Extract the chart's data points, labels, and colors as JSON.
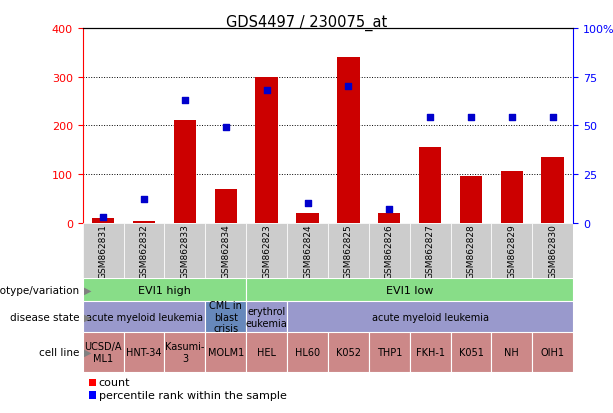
{
  "title": "GDS4497 / 230075_at",
  "gsm_labels": [
    "GSM862831",
    "GSM862832",
    "GSM862833",
    "GSM862834",
    "GSM862823",
    "GSM862824",
    "GSM862825",
    "GSM862826",
    "GSM862827",
    "GSM862828",
    "GSM862829",
    "GSM862830"
  ],
  "counts": [
    10,
    4,
    210,
    70,
    300,
    20,
    340,
    20,
    155,
    95,
    105,
    135
  ],
  "percentile_ranks": [
    3,
    12,
    63,
    49,
    68,
    10,
    70,
    7,
    54,
    54,
    54,
    54
  ],
  "ylim_left": [
    0,
    400
  ],
  "ylim_right": [
    0,
    100
  ],
  "yticks_left": [
    0,
    100,
    200,
    300,
    400
  ],
  "yticks_right": [
    0,
    25,
    50,
    75,
    100
  ],
  "bar_color": "#cc0000",
  "dot_color": "#0000cc",
  "bg_color": "#ffffff",
  "xtick_bg": "#cccccc",
  "genotype_label": "genotype/variation",
  "disease_label": "disease state",
  "cellline_label": "cell line",
  "genotype_groups": [
    {
      "label": "EVI1 high",
      "start": 0,
      "end": 4,
      "color": "#88dd88"
    },
    {
      "label": "EVI1 low",
      "start": 4,
      "end": 12,
      "color": "#88dd88"
    }
  ],
  "disease_groups": [
    {
      "label": "acute myeloid leukemia",
      "start": 0,
      "end": 3,
      "color": "#9999cc"
    },
    {
      "label": "CML in\nblast\ncrisis",
      "start": 3,
      "end": 4,
      "color": "#6688bb"
    },
    {
      "label": "erythrol\neukemia",
      "start": 4,
      "end": 5,
      "color": "#9999cc"
    },
    {
      "label": "acute myeloid leukemia",
      "start": 5,
      "end": 12,
      "color": "#9999cc"
    }
  ],
  "cell_lines": [
    {
      "label": "UCSD/A\nML1",
      "start": 0,
      "end": 1
    },
    {
      "label": "HNT-34",
      "start": 1,
      "end": 2
    },
    {
      "label": "Kasumi-\n3",
      "start": 2,
      "end": 3
    },
    {
      "label": "MOLM1",
      "start": 3,
      "end": 4
    },
    {
      "label": "HEL",
      "start": 4,
      "end": 5
    },
    {
      "label": "HL60",
      "start": 5,
      "end": 6
    },
    {
      "label": "K052",
      "start": 6,
      "end": 7
    },
    {
      "label": "THP1",
      "start": 7,
      "end": 8
    },
    {
      "label": "FKH-1",
      "start": 8,
      "end": 9
    },
    {
      "label": "K051",
      "start": 9,
      "end": 10
    },
    {
      "label": "NH",
      "start": 10,
      "end": 11
    },
    {
      "label": "OIH1",
      "start": 11,
      "end": 12
    }
  ],
  "cell_line_color": "#cc8888"
}
